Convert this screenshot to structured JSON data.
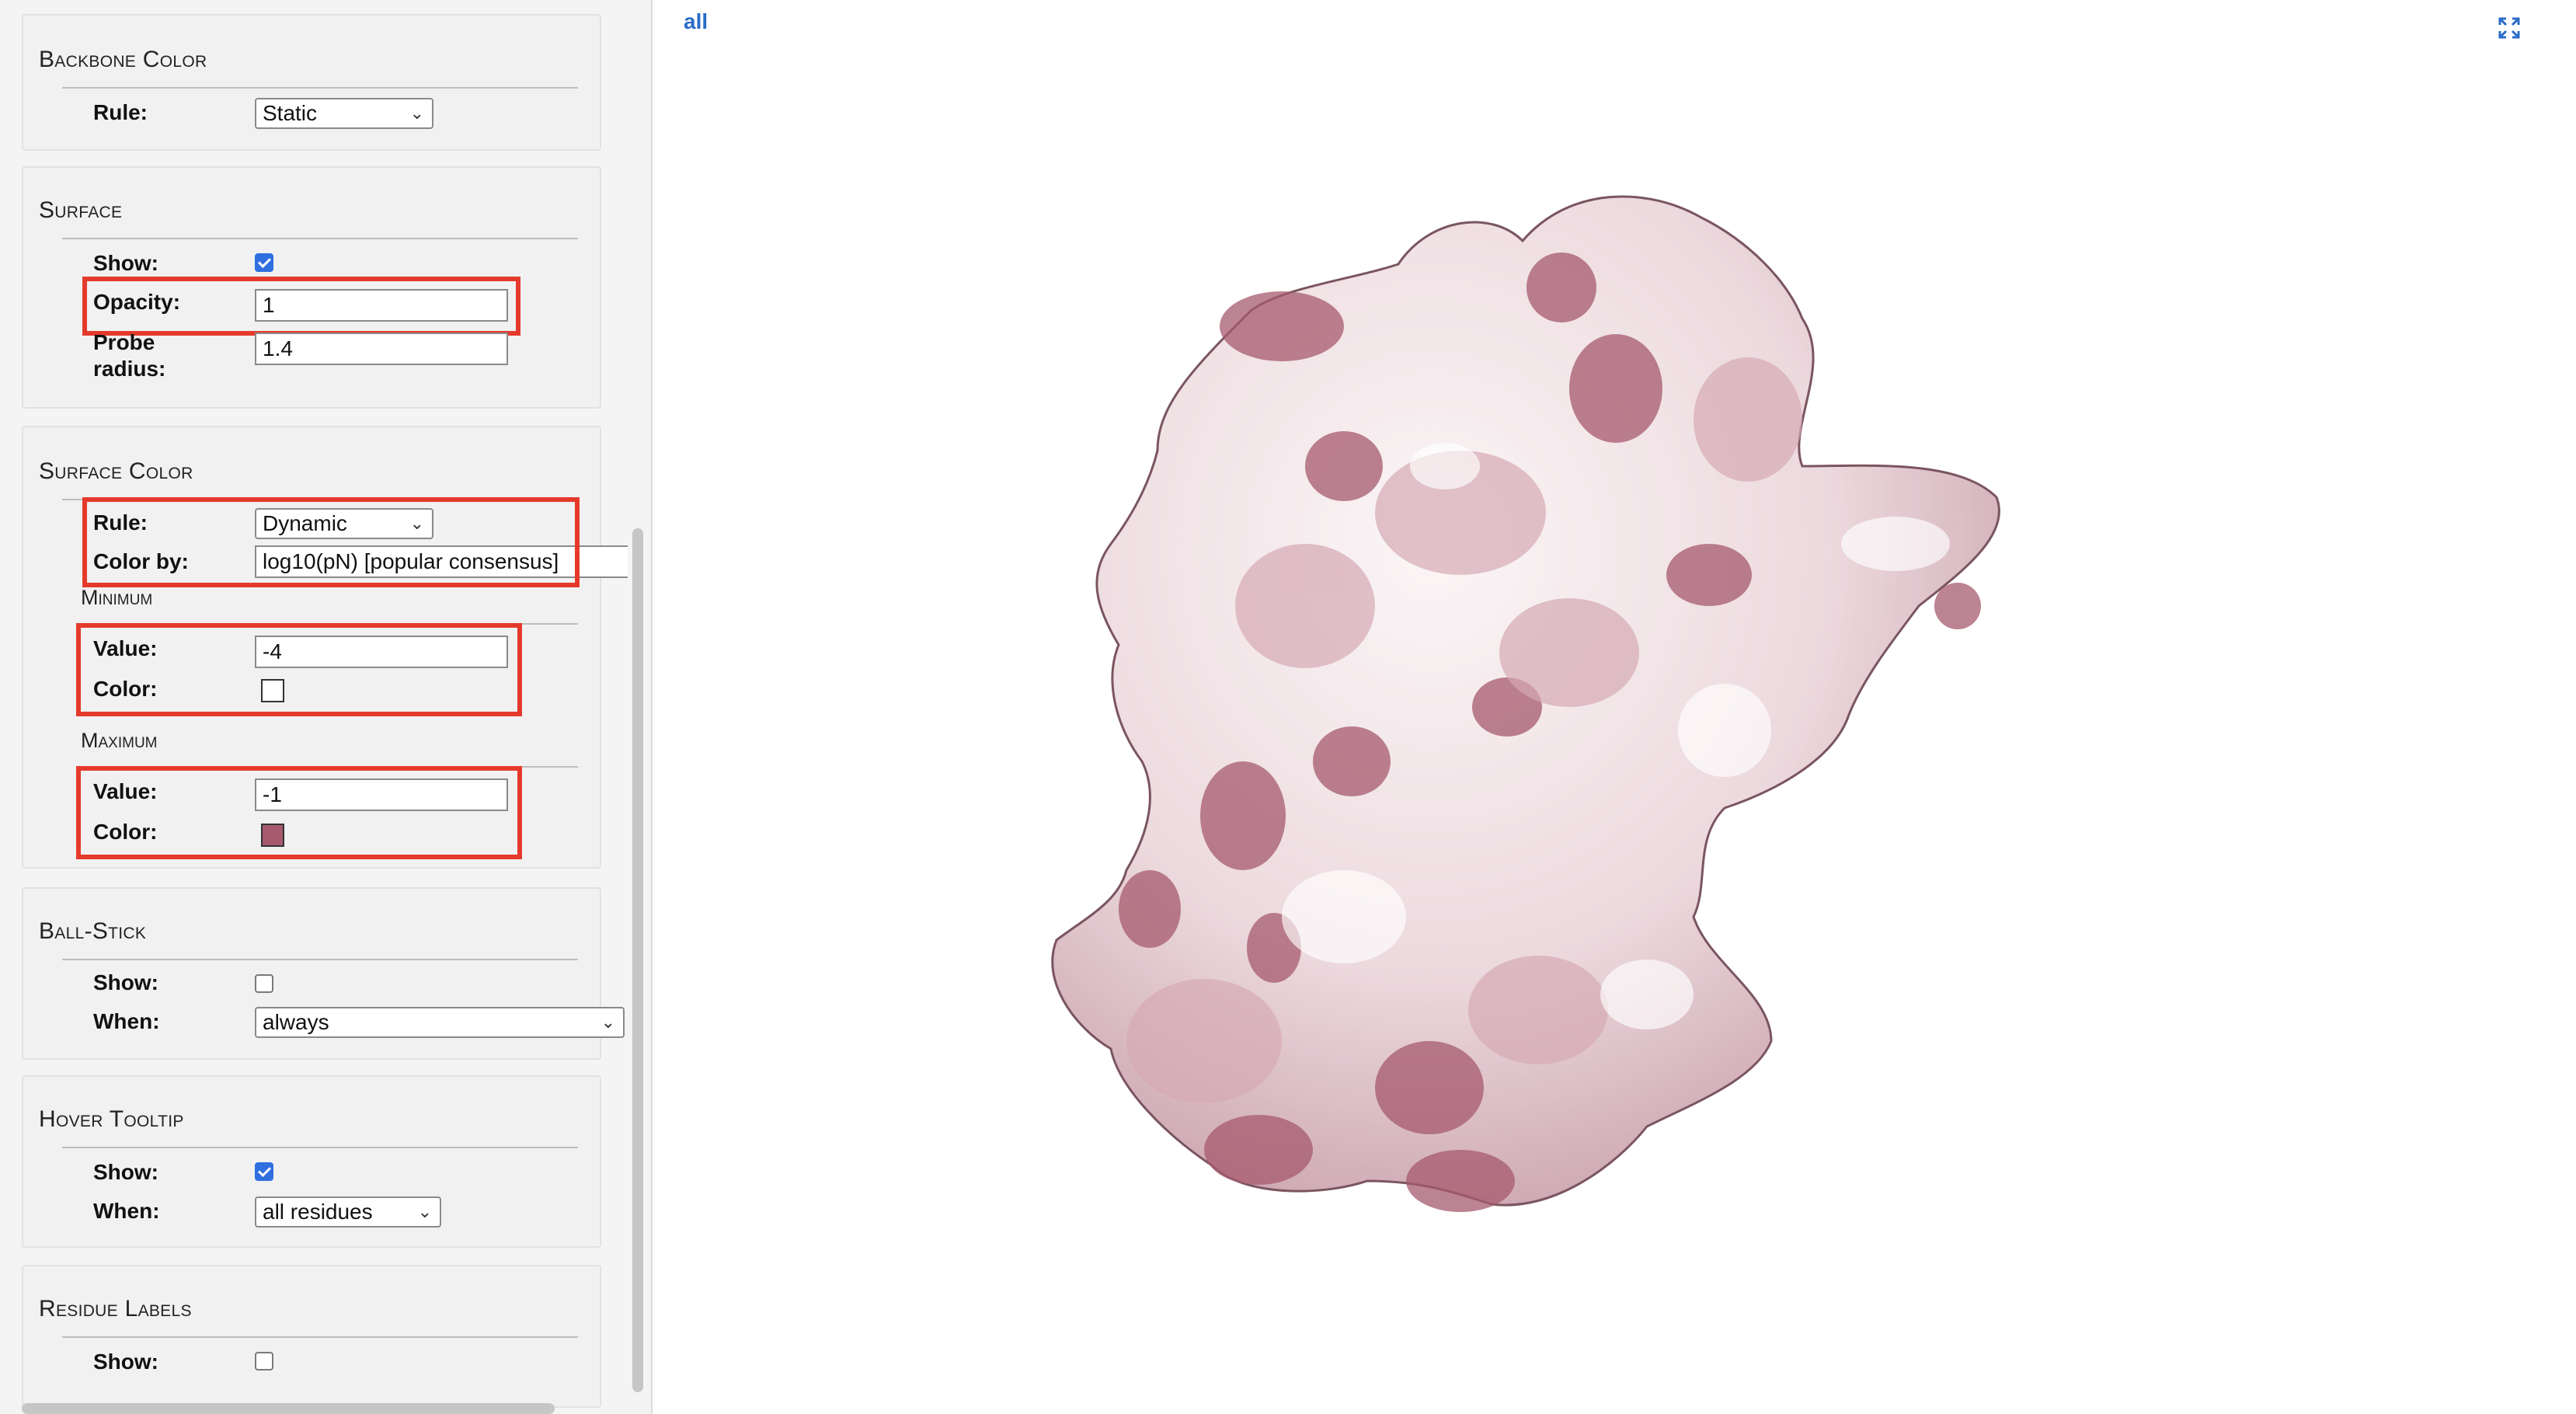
{
  "sidebar": {
    "backbone_color": {
      "title": "Backbone Color",
      "rule_label": "Rule:",
      "rule_value": "Static"
    },
    "surface": {
      "title": "Surface",
      "show_label": "Show:",
      "show_checked": true,
      "opacity_label": "Opacity:",
      "opacity_value": "1",
      "probe_label_1": "Probe",
      "probe_label_2": "radius:",
      "probe_value": "1.4"
    },
    "surface_color": {
      "title": "Surface Color",
      "rule_label": "Rule:",
      "rule_value": "Dynamic",
      "color_by_label": "Color by:",
      "color_by_value": "log10(pN) [popular consensus]",
      "minimum": {
        "title": "Minimum",
        "value_label": "Value:",
        "value": "-4",
        "color_label": "Color:",
        "color": "#ffffff"
      },
      "maximum": {
        "title": "Maximum",
        "value_label": "Value:",
        "value": "-1",
        "color_label": "Color:",
        "color": "#a65a6e"
      }
    },
    "ball_stick": {
      "title": "Ball-Stick",
      "show_label": "Show:",
      "show_checked": false,
      "when_label": "When:",
      "when_value": "always"
    },
    "hover_tooltip": {
      "title": "Hover Tooltip",
      "show_label": "Show:",
      "show_checked": true,
      "when_label": "When:",
      "when_value": "all residues"
    },
    "residue_labels": {
      "title": "Residue Labels",
      "show_label": "Show:",
      "show_checked": false
    }
  },
  "viewer": {
    "tab_label": "all",
    "fullscreen_icon": "expand-icon",
    "surface_colors": {
      "low": "#f6f0f2",
      "mid": "#d6a9b5",
      "high": "#a65a6e"
    }
  },
  "highlight_color": "#e53a2b"
}
